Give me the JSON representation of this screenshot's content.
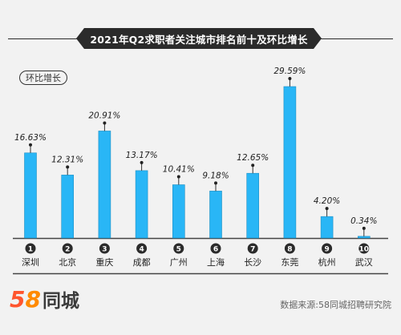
{
  "header": {
    "title": "2021年Q2求职者关注城市排名前十及环比增长"
  },
  "legend": {
    "label": "环比增长"
  },
  "footer": {
    "brand": {
      "num_5": "5",
      "num_8": "8",
      "text": "同城"
    },
    "source": "数据来源:58同城招聘研究院"
  },
  "colors": {
    "bar": "#29b6f6",
    "bar_stroke": "#1f8fc4",
    "badge": "#2b2b2b",
    "axis": "#444444",
    "brand_5": "#ff552e",
    "brand_8": "#ff8a00"
  },
  "chart_data": {
    "type": "bar",
    "title": "2021年Q2求职者关注城市排名前十及环比增长",
    "legend": [
      "环比增长"
    ],
    "ranks": [
      "1",
      "2",
      "3",
      "4",
      "5",
      "6",
      "7",
      "8",
      "9",
      "10"
    ],
    "categories": [
      "深圳",
      "北京",
      "重庆",
      "成都",
      "广州",
      "上海",
      "长沙",
      "东莞",
      "杭州",
      "武汉"
    ],
    "series": [
      {
        "name": "环比增长",
        "values": [
          16.63,
          12.31,
          20.91,
          13.17,
          10.41,
          9.18,
          12.65,
          29.59,
          4.2,
          0.34
        ],
        "labels": [
          "16.63%",
          "12.31%",
          "20.91%",
          "13.17%",
          "10.41%",
          "9.18%",
          "12.65%",
          "29.59%",
          "4.20%",
          "0.34%"
        ]
      }
    ],
    "ylim": [
      0,
      31
    ],
    "grid": false,
    "legend_position": "top-left"
  }
}
